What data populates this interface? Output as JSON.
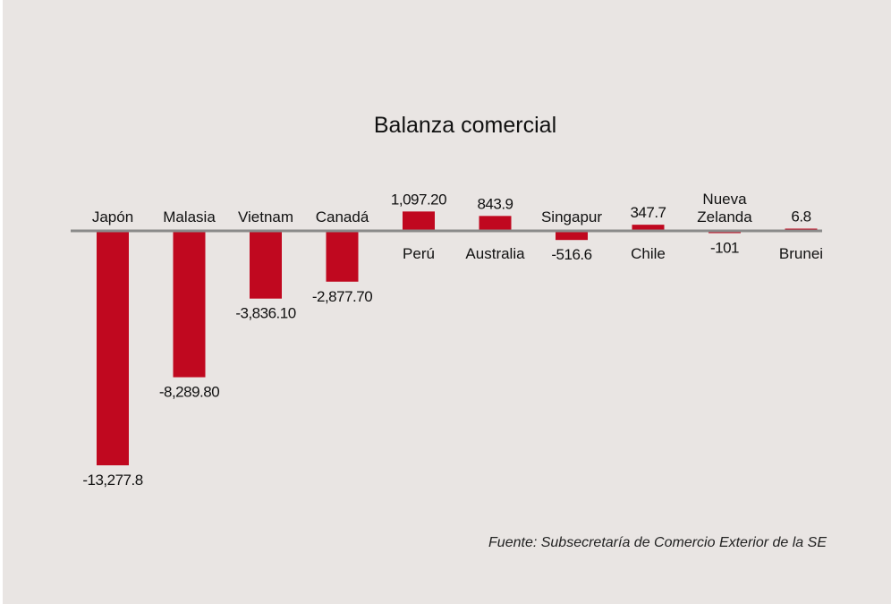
{
  "chart_data": {
    "type": "bar",
    "title": "Balanza comercial",
    "categories": [
      "Japón",
      "Malasia",
      "Vietnam",
      "Canadá",
      "Perú",
      "Australia",
      "Singapur",
      "Chile",
      "Nueva Zelanda",
      "Brunei"
    ],
    "category_lines": [
      [
        "Japón"
      ],
      [
        "Malasia"
      ],
      [
        "Vietnam"
      ],
      [
        "Canadá"
      ],
      [
        "Perú"
      ],
      [
        "Australia"
      ],
      [
        "Singapur"
      ],
      [
        "Chile"
      ],
      [
        "Nueva",
        "Zelanda"
      ],
      [
        "Brunei"
      ]
    ],
    "values": [
      -13277.8,
      -8289.8,
      -3836.1,
      -2877.7,
      1097.2,
      843.9,
      -516.6,
      347.7,
      -101,
      6.8
    ],
    "value_labels": [
      "-13,277.8",
      "-8,289.80",
      "-3,836.10",
      "-2,877.70",
      "1,097.20",
      "843.9",
      "-516.6",
      "347.7",
      "-101",
      "6.8"
    ],
    "xlabel": "",
    "ylabel": "",
    "grid": false,
    "legend": "none"
  },
  "source": "Fuente: Subsecretaría de Comercio Exterior de la SE",
  "colors": {
    "bar": "#c0081f",
    "axis": "#8a8a8a",
    "background": "#e9e5e3"
  }
}
